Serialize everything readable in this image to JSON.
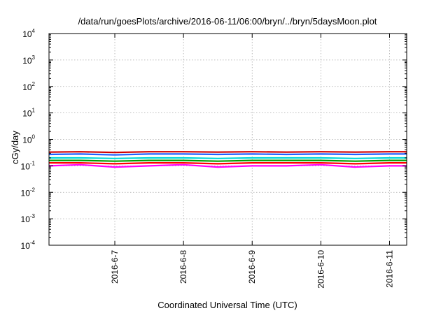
{
  "chart_data": {
    "type": "line",
    "title": "/data/run/goesPlots/archive/2016-06-11/06:00/bryn/../bryn/5daysMoon.plot",
    "xlabel": "Coordinated Universal Time (UTC)",
    "ylabel": "cGy/day",
    "yscale": "log",
    "ylim": [
      0.0001,
      10000
    ],
    "xlim": [
      "2016-06-06 01:00",
      "2016-06-11 06:00"
    ],
    "x_ticks": [
      "2016-6-7",
      "2016-6-8",
      "2016-6-9",
      "2016-6-10",
      "2016-6-11"
    ],
    "y_ticks": [
      {
        "base": "10",
        "exp": "-4",
        "value": 0.0001
      },
      {
        "base": "10",
        "exp": "-3",
        "value": 0.001
      },
      {
        "base": "10",
        "exp": "-2",
        "value": 0.01
      },
      {
        "base": "10",
        "exp": "-1",
        "value": 0.1
      },
      {
        "base": "10",
        "exp": "0",
        "value": 1
      },
      {
        "base": "10",
        "exp": "1",
        "value": 10
      },
      {
        "base": "10",
        "exp": "2",
        "value": 100
      },
      {
        "base": "10",
        "exp": "3",
        "value": 1000
      },
      {
        "base": "10",
        "exp": "4",
        "value": 10000
      }
    ],
    "grid": true,
    "legend": "none",
    "series": [
      {
        "color": "#ff00ff",
        "x": [
          "2016-06-06 01:00",
          "2016-06-06 12:00",
          "2016-06-07 00:00",
          "2016-06-07 12:00",
          "2016-06-08 00:00",
          "2016-06-08 12:00",
          "2016-06-09 00:00",
          "2016-06-09 12:00",
          "2016-06-10 00:00",
          "2016-06-10 12:00",
          "2016-06-11 00:00",
          "2016-06-11 06:00"
        ],
        "values": [
          0.1,
          0.11,
          0.09,
          0.1,
          0.11,
          0.09,
          0.1,
          0.1,
          0.11,
          0.09,
          0.1,
          0.1
        ]
      },
      {
        "color": "#ff0000",
        "x": [
          "2016-06-06 01:00",
          "2016-06-06 12:00",
          "2016-06-07 00:00",
          "2016-06-07 12:00",
          "2016-06-08 00:00",
          "2016-06-08 12:00",
          "2016-06-09 00:00",
          "2016-06-09 12:00",
          "2016-06-10 00:00",
          "2016-06-10 12:00",
          "2016-06-11 00:00",
          "2016-06-11 06:00"
        ],
        "values": [
          0.13,
          0.13,
          0.12,
          0.13,
          0.13,
          0.12,
          0.13,
          0.13,
          0.13,
          0.12,
          0.13,
          0.13
        ]
      },
      {
        "color": "#00a000",
        "x": [
          "2016-06-06 01:00",
          "2016-06-06 12:00",
          "2016-06-07 00:00",
          "2016-06-07 12:00",
          "2016-06-08 00:00",
          "2016-06-08 12:00",
          "2016-06-09 00:00",
          "2016-06-09 12:00",
          "2016-06-10 00:00",
          "2016-06-10 12:00",
          "2016-06-11 00:00",
          "2016-06-11 06:00"
        ],
        "values": [
          0.16,
          0.16,
          0.15,
          0.16,
          0.16,
          0.15,
          0.16,
          0.16,
          0.16,
          0.15,
          0.16,
          0.16
        ]
      },
      {
        "color": "#00d8d8",
        "x": [
          "2016-06-06 01:00",
          "2016-06-06 12:00",
          "2016-06-07 00:00",
          "2016-06-07 12:00",
          "2016-06-08 00:00",
          "2016-06-08 12:00",
          "2016-06-09 00:00",
          "2016-06-09 12:00",
          "2016-06-10 00:00",
          "2016-06-10 12:00",
          "2016-06-11 00:00",
          "2016-06-11 06:00"
        ],
        "values": [
          0.2,
          0.2,
          0.19,
          0.2,
          0.2,
          0.19,
          0.2,
          0.2,
          0.2,
          0.19,
          0.2,
          0.2
        ]
      },
      {
        "color": "#2060ff",
        "x": [
          "2016-06-06 01:00",
          "2016-06-06 12:00",
          "2016-06-07 00:00",
          "2016-06-07 12:00",
          "2016-06-08 00:00",
          "2016-06-08 12:00",
          "2016-06-09 00:00",
          "2016-06-09 12:00",
          "2016-06-10 00:00",
          "2016-06-10 12:00",
          "2016-06-11 00:00",
          "2016-06-11 06:00"
        ],
        "values": [
          0.27,
          0.28,
          0.26,
          0.28,
          0.28,
          0.27,
          0.28,
          0.27,
          0.28,
          0.27,
          0.28,
          0.28
        ]
      },
      {
        "color": "#d00000",
        "x": [
          "2016-06-06 01:00",
          "2016-06-06 12:00",
          "2016-06-07 00:00",
          "2016-06-07 12:00",
          "2016-06-08 00:00",
          "2016-06-08 12:00",
          "2016-06-09 00:00",
          "2016-06-09 12:00",
          "2016-06-10 00:00",
          "2016-06-10 12:00",
          "2016-06-11 00:00",
          "2016-06-11 06:00"
        ],
        "values": [
          0.33,
          0.34,
          0.32,
          0.34,
          0.34,
          0.33,
          0.34,
          0.33,
          0.34,
          0.33,
          0.34,
          0.34
        ]
      }
    ]
  }
}
